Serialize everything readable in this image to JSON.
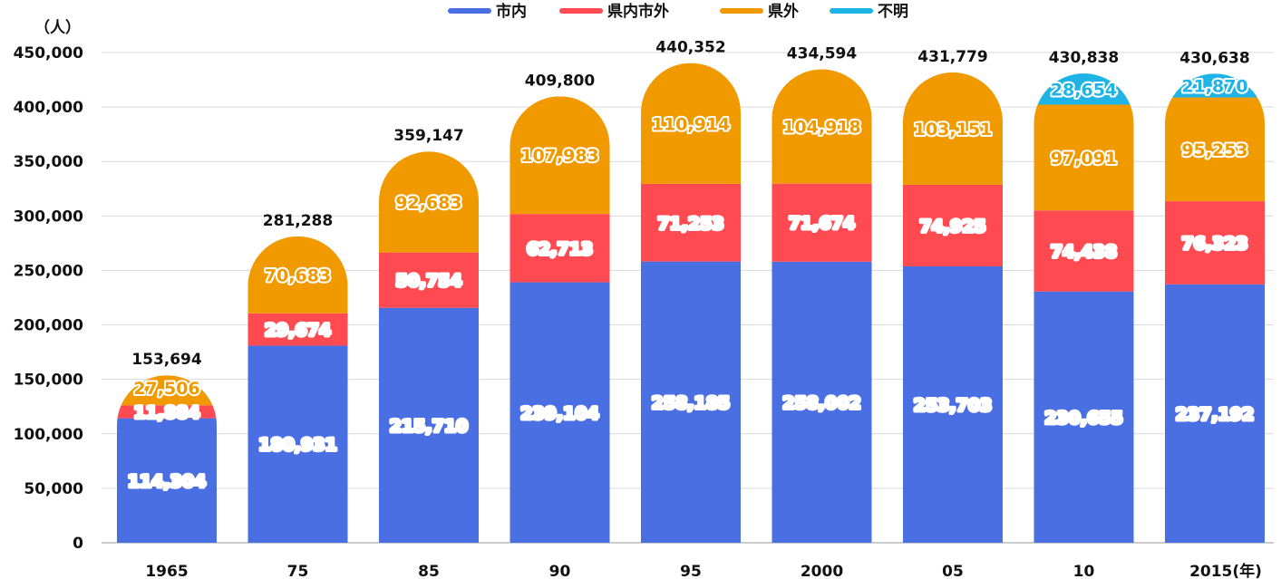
{
  "chart_data": {
    "type": "bar",
    "stacked": true,
    "title": "",
    "y_unit_label": "（人）",
    "x_unit_label": "(年)",
    "categories": [
      "1965",
      "75",
      "85",
      "90",
      "95",
      "2000",
      "05",
      "10",
      "2015"
    ],
    "series": [
      {
        "name": "市内",
        "color": "#4A6FE3",
        "values": [
          114304,
          180931,
          215710,
          239104,
          258185,
          258002,
          253703,
          230655,
          237192
        ]
      },
      {
        "name": "県内市外",
        "color": "#FF4A52",
        "values": [
          11884,
          29674,
          50754,
          62713,
          71253,
          71674,
          74925,
          74438,
          76323
        ]
      },
      {
        "name": "県外",
        "color": "#F09A00",
        "values": [
          27506,
          70683,
          92683,
          107983,
          110914,
          104918,
          103151,
          97091,
          95253
        ]
      },
      {
        "name": "不明",
        "color": "#1EB4E6",
        "values": [
          null,
          null,
          null,
          null,
          null,
          null,
          null,
          28654,
          21870
        ]
      }
    ],
    "totals": [
      "153,694",
      "281,288",
      "359,147",
      "409,800",
      "440,352",
      "434,594",
      "431,779",
      "430,838",
      "430,638"
    ],
    "value_labels": [
      [
        "114,304",
        "180,931",
        "215,710",
        "239,104",
        "258,185",
        "258,002",
        "253,703",
        "230,655",
        "237,192"
      ],
      [
        "11,884",
        "29,674",
        "50,754",
        "62,713",
        "71,253",
        "71,674",
        "74,925",
        "74,438",
        "76,323"
      ],
      [
        "27,506",
        "70,683",
        "92,683",
        "107,983",
        "110,914",
        "104,918",
        "103,151",
        "97,091",
        "95,253"
      ],
      [
        null,
        null,
        null,
        null,
        null,
        null,
        null,
        "28,654",
        "21,870"
      ]
    ],
    "y_ticks": [
      "0",
      "50,000",
      "100,000",
      "150,000",
      "200,000",
      "250,000",
      "300,000",
      "350,000",
      "400,000",
      "450,000"
    ],
    "ylim": [
      0,
      450000
    ],
    "y_step": 50000,
    "grid": true,
    "legend_position": "top-center"
  }
}
